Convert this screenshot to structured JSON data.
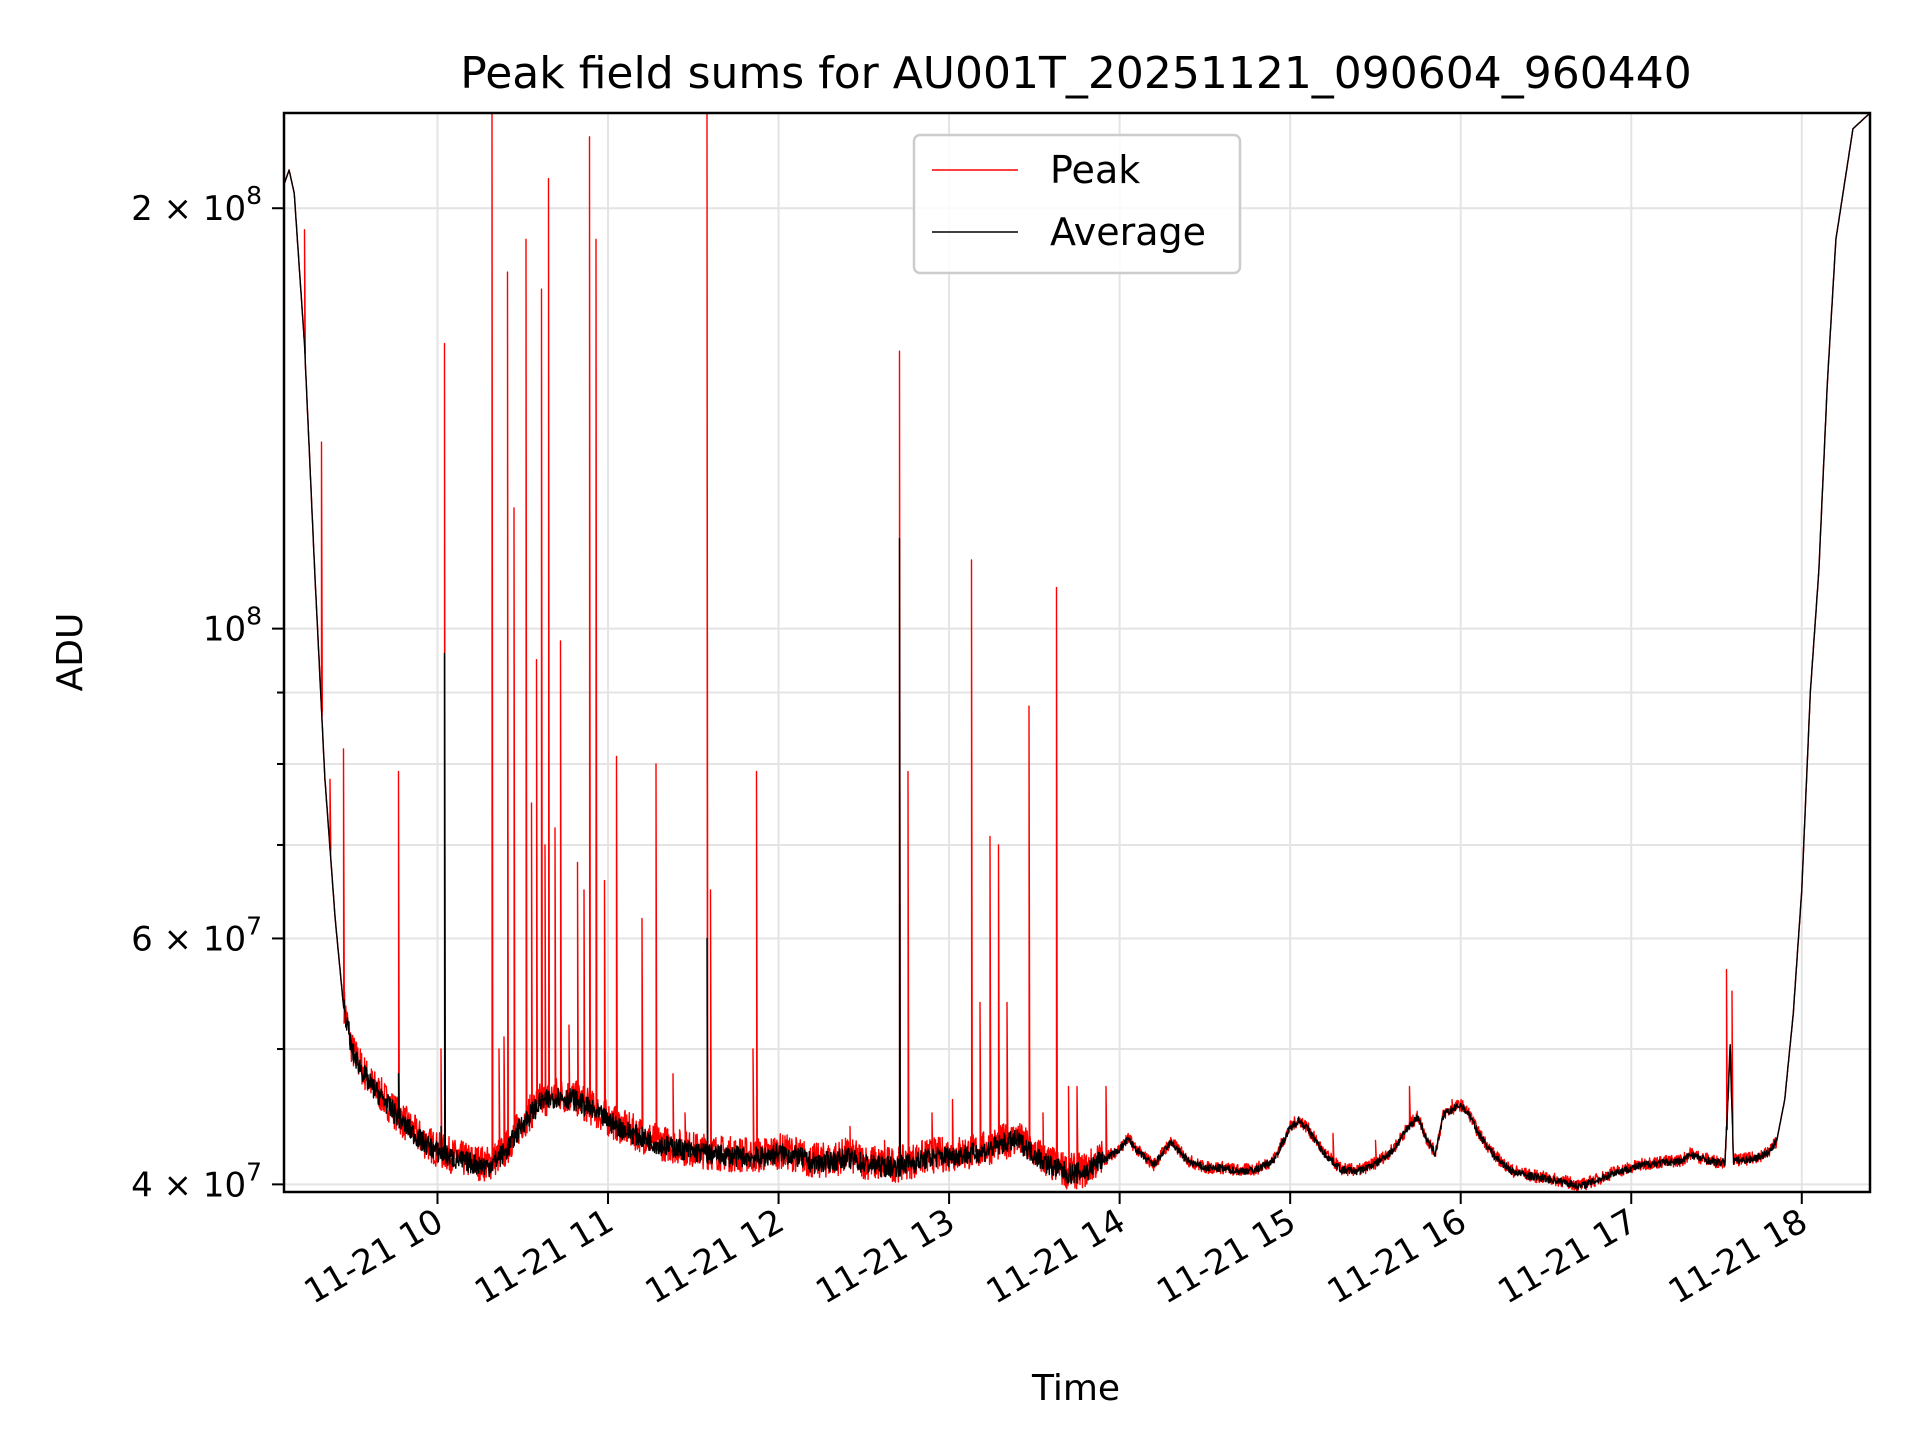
{
  "chart_data": {
    "type": "line",
    "title": "Peak field sums for AU001T_20251121_090604_960440",
    "xlabel": "Time",
    "ylabel": "ADU",
    "x_unit": "hours",
    "xlim": [
      9.1,
      18.4
    ],
    "ylim": [
      39500000,
      234000000
    ],
    "y_scale": "log",
    "grid": true,
    "legend_position": "upper-center",
    "x_ticks": [
      {
        "value": 10,
        "label": "11-21 10"
      },
      {
        "value": 11,
        "label": "11-21 11"
      },
      {
        "value": 12,
        "label": "11-21 12"
      },
      {
        "value": 13,
        "label": "11-21 13"
      },
      {
        "value": 14,
        "label": "11-21 14"
      },
      {
        "value": 15,
        "label": "11-21 15"
      },
      {
        "value": 16,
        "label": "11-21 16"
      },
      {
        "value": 17,
        "label": "11-21 17"
      },
      {
        "value": 18,
        "label": "11-21 18"
      }
    ],
    "y_ticks": [
      {
        "value": 40000000,
        "mantissa": "4",
        "exp": "7"
      },
      {
        "value": 60000000,
        "mantissa": "6",
        "exp": "7"
      },
      {
        "value": 100000000,
        "mantissa": "",
        "exp": "8"
      },
      {
        "value": 200000000,
        "mantissa": "2",
        "exp": "8"
      }
    ],
    "y_minor_ticks": [
      50000000,
      70000000,
      80000000,
      90000000
    ],
    "series": [
      {
        "name": "Peak",
        "color": "#ff0000",
        "spikes": [
          [
            9.22,
            193000000
          ],
          [
            9.32,
            136000000
          ],
          [
            9.37,
            78000000
          ],
          [
            9.45,
            82000000
          ],
          [
            9.77,
            79000000
          ],
          [
            10.02,
            50000000
          ],
          [
            10.04,
            160000000
          ],
          [
            10.32,
            234000000
          ],
          [
            10.36,
            50000000
          ],
          [
            10.39,
            51000000
          ],
          [
            10.41,
            180000000
          ],
          [
            10.45,
            122000000
          ],
          [
            10.52,
            190000000
          ],
          [
            10.55,
            75000000
          ],
          [
            10.58,
            95000000
          ],
          [
            10.61,
            175000000
          ],
          [
            10.63,
            70000000
          ],
          [
            10.65,
            210000000
          ],
          [
            10.69,
            72000000
          ],
          [
            10.72,
            98000000
          ],
          [
            10.77,
            52000000
          ],
          [
            10.82,
            68000000
          ],
          [
            10.86,
            65000000
          ],
          [
            10.89,
            225000000
          ],
          [
            10.93,
            190000000
          ],
          [
            10.98,
            66000000
          ],
          [
            11.05,
            81000000
          ],
          [
            11.2,
            62000000
          ],
          [
            11.28,
            80000000
          ],
          [
            11.38,
            48000000
          ],
          [
            11.45,
            45000000
          ],
          [
            11.58,
            234000000
          ],
          [
            11.6,
            65000000
          ],
          [
            11.85,
            50000000
          ],
          [
            11.87,
            79000000
          ],
          [
            12.42,
            44000000
          ],
          [
            12.62,
            43000000
          ],
          [
            12.71,
            158000000
          ],
          [
            12.76,
            79000000
          ],
          [
            12.9,
            45000000
          ],
          [
            13.02,
            46000000
          ],
          [
            13.13,
            112000000
          ],
          [
            13.18,
            54000000
          ],
          [
            13.24,
            71000000
          ],
          [
            13.29,
            70000000
          ],
          [
            13.34,
            54000000
          ],
          [
            13.47,
            88000000
          ],
          [
            13.55,
            45000000
          ],
          [
            13.63,
            107000000
          ],
          [
            13.7,
            47000000
          ],
          [
            13.75,
            47000000
          ],
          [
            13.92,
            47000000
          ],
          [
            15.25,
            43500000
          ],
          [
            15.5,
            43000000
          ],
          [
            15.7,
            47000000
          ],
          [
            15.95,
            46000000
          ],
          [
            17.56,
            57000000
          ],
          [
            17.59,
            55000000
          ]
        ]
      },
      {
        "name": "Average",
        "color": "#000000",
        "points": [
          [
            9.1,
            208000000
          ],
          [
            9.13,
            213000000
          ],
          [
            9.16,
            205000000
          ],
          [
            9.22,
            160000000
          ],
          [
            9.28,
            110000000
          ],
          [
            9.34,
            78000000
          ],
          [
            9.4,
            62000000
          ],
          [
            9.45,
            53500000
          ],
          [
            9.5,
            49500000
          ],
          [
            9.6,
            47000000
          ],
          [
            9.7,
            45500000
          ],
          [
            9.8,
            44000000
          ],
          [
            9.9,
            42800000
          ],
          [
            10.0,
            42000000
          ],
          [
            10.1,
            41500000
          ],
          [
            10.2,
            41200000
          ],
          [
            10.3,
            41000000
          ],
          [
            10.4,
            42000000
          ],
          [
            10.5,
            44000000
          ],
          [
            10.6,
            45500000
          ],
          [
            10.7,
            46000000
          ],
          [
            10.8,
            45800000
          ],
          [
            10.9,
            45000000
          ],
          [
            11.0,
            44200000
          ],
          [
            11.1,
            43500000
          ],
          [
            11.2,
            43000000
          ],
          [
            11.3,
            42500000
          ],
          [
            11.5,
            42000000
          ],
          [
            11.7,
            41700000
          ],
          [
            11.9,
            41600000
          ],
          [
            12.0,
            41900000
          ],
          [
            12.1,
            41700000
          ],
          [
            12.2,
            41200000
          ],
          [
            12.3,
            41300000
          ],
          [
            12.4,
            41600000
          ],
          [
            12.5,
            41200000
          ],
          [
            12.6,
            41000000
          ],
          [
            12.7,
            41000000
          ],
          [
            12.8,
            41300000
          ],
          [
            12.9,
            41600000
          ],
          [
            13.0,
            41700000
          ],
          [
            13.1,
            41800000
          ],
          [
            13.2,
            42000000
          ],
          [
            13.3,
            42500000
          ],
          [
            13.4,
            42800000
          ],
          [
            13.5,
            41800000
          ],
          [
            13.6,
            41000000
          ],
          [
            13.7,
            40500000
          ],
          [
            13.8,
            40600000
          ],
          [
            13.9,
            41500000
          ],
          [
            14.0,
            42300000
          ],
          [
            14.05,
            43000000
          ],
          [
            14.12,
            42000000
          ],
          [
            14.2,
            41200000
          ],
          [
            14.3,
            42800000
          ],
          [
            14.4,
            41500000
          ],
          [
            14.5,
            41000000
          ],
          [
            14.6,
            41000000
          ],
          [
            14.7,
            40800000
          ],
          [
            14.8,
            40900000
          ],
          [
            14.9,
            41500000
          ],
          [
            15.0,
            43800000
          ],
          [
            15.05,
            44400000
          ],
          [
            15.1,
            43800000
          ],
          [
            15.2,
            42000000
          ],
          [
            15.3,
            40900000
          ],
          [
            15.4,
            40800000
          ],
          [
            15.5,
            41300000
          ],
          [
            15.6,
            42200000
          ],
          [
            15.7,
            44000000
          ],
          [
            15.75,
            44600000
          ],
          [
            15.8,
            43000000
          ],
          [
            15.85,
            42000000
          ],
          [
            15.9,
            44800000
          ],
          [
            16.0,
            45500000
          ],
          [
            16.05,
            44800000
          ],
          [
            16.1,
            43500000
          ],
          [
            16.2,
            41800000
          ],
          [
            16.3,
            40800000
          ],
          [
            16.4,
            40500000
          ],
          [
            16.5,
            40300000
          ],
          [
            16.6,
            40100000
          ],
          [
            16.7,
            39800000
          ],
          [
            16.8,
            40200000
          ],
          [
            16.9,
            40700000
          ],
          [
            17.0,
            41000000
          ],
          [
            17.1,
            41300000
          ],
          [
            17.2,
            41400000
          ],
          [
            17.3,
            41500000
          ],
          [
            17.35,
            42000000
          ],
          [
            17.4,
            41700000
          ],
          [
            17.5,
            41400000
          ],
          [
            17.55,
            41400000
          ],
          [
            17.58,
            50000000
          ],
          [
            17.6,
            41500000
          ],
          [
            17.7,
            41600000
          ],
          [
            17.8,
            42000000
          ],
          [
            17.85,
            42800000
          ],
          [
            17.9,
            46000000
          ],
          [
            17.95,
            53000000
          ],
          [
            18.0,
            65000000
          ],
          [
            18.05,
            90000000
          ],
          [
            18.1,
            110000000
          ],
          [
            18.15,
            150000000
          ],
          [
            18.2,
            190000000
          ],
          [
            18.3,
            228000000
          ],
          [
            18.4,
            234000000
          ]
        ],
        "spikes": [
          [
            10.04,
            96000000
          ],
          [
            11.58,
            60000000
          ],
          [
            12.71,
            116000000
          ],
          [
            9.77,
            48000000
          ],
          [
            10.02,
            44000000
          ]
        ]
      }
    ]
  }
}
